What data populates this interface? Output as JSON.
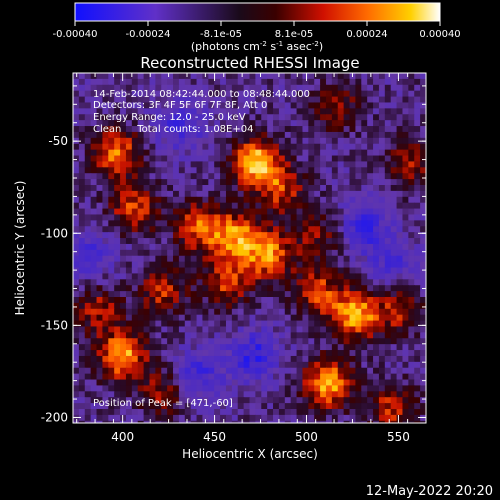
{
  "colorbar": {
    "ticks": [
      "-0.00040",
      "-0.00024",
      "-8.1e-05",
      "8.1e-05",
      "0.00024",
      "0.00040"
    ],
    "unit_main": "(photons cm",
    "unit_exp1": "-2",
    "unit_mid": " s",
    "unit_exp2": "-1",
    "unit_tail": " asec",
    "unit_exp3": "-2",
    "unit_close": ")"
  },
  "chart_data": {
    "type": "heatmap",
    "title": "Reconstructed RHESSI Image",
    "xlabel": "Heliocentric X (arcsec)",
    "ylabel": "Heliocentric Y (arcsec)",
    "xticks": [
      "400",
      "450",
      "500",
      "550"
    ],
    "yticks": [
      "-50",
      "-100",
      "-150",
      "-200"
    ],
    "xlim": [
      373,
      565
    ],
    "ylim": [
      -203,
      -13
    ],
    "value_range": [
      -0.0004,
      0.0004
    ],
    "colormap": "blue-purple-black-red-orange-yellow-white",
    "peak": [
      471,
      -60
    ],
    "hotspots": [
      {
        "x": 471,
        "y": -60,
        "v": 1.0
      },
      {
        "x": 395,
        "y": -55,
        "v": 0.75
      },
      {
        "x": 405,
        "y": -85,
        "v": 0.65
      },
      {
        "x": 440,
        "y": -95,
        "v": 0.7
      },
      {
        "x": 460,
        "y": -100,
        "v": 0.75
      },
      {
        "x": 485,
        "y": -75,
        "v": 0.55
      },
      {
        "x": 478,
        "y": -110,
        "v": 0.8
      },
      {
        "x": 455,
        "y": -125,
        "v": 0.6
      },
      {
        "x": 420,
        "y": -130,
        "v": 0.55
      },
      {
        "x": 398,
        "y": -165,
        "v": 0.9
      },
      {
        "x": 385,
        "y": -140,
        "v": 0.5
      },
      {
        "x": 525,
        "y": -143,
        "v": 0.85
      },
      {
        "x": 505,
        "y": -130,
        "v": 0.6
      },
      {
        "x": 548,
        "y": -140,
        "v": 0.5
      },
      {
        "x": 510,
        "y": -180,
        "v": 0.9
      },
      {
        "x": 545,
        "y": -193,
        "v": 0.55
      },
      {
        "x": 555,
        "y": -60,
        "v": 0.5
      },
      {
        "x": 515,
        "y": -30,
        "v": 0.45
      },
      {
        "x": 505,
        "y": -100,
        "v": 0.4
      },
      {
        "x": 420,
        "y": -185,
        "v": 0.45
      }
    ],
    "coldspots": [
      {
        "x": 430,
        "y": -40,
        "v": -0.45
      },
      {
        "x": 530,
        "y": -95,
        "v": -0.5
      },
      {
        "x": 470,
        "y": -165,
        "v": -0.55
      },
      {
        "x": 440,
        "y": -175,
        "v": -0.45
      },
      {
        "x": 380,
        "y": -110,
        "v": -0.4
      },
      {
        "x": 545,
        "y": -115,
        "v": -0.35
      }
    ]
  },
  "annotations": {
    "line1": "14-Feb-2014 08:42:44.000 to 08:48:44.000",
    "line2": "Detectors: 3F 4F 5F 6F 7F 8F, Att 0",
    "line3": "Energy Range: 12.0 - 25.0 keV",
    "line4": "Clean     Total counts: 1.08E+04",
    "peak_label": "Position of Peak = [471,-60]"
  },
  "footer": {
    "date": "12-May-2022 20:20"
  }
}
